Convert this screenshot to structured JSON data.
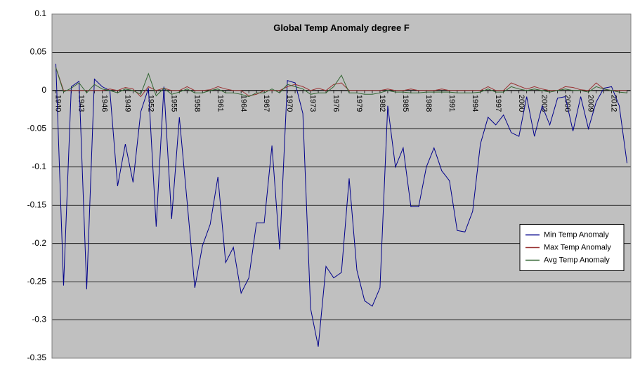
{
  "chart": {
    "type": "line",
    "title": "Global Temp Anomaly degree F",
    "title_fontsize": 13,
    "title_fontweight": "bold",
    "background_color": "#c0c0c0",
    "outer_background": "#ffffff",
    "plot_border_color": "#808080",
    "grid_color": "#000000",
    "axis_zero_color": "#000000",
    "ylabel_fontsize": 12,
    "xlabel_fontsize": 11,
    "xlabel_rotation": 90,
    "ylim": [
      -0.35,
      0.1
    ],
    "ytick_step": 0.05,
    "yticks": [
      0.1,
      0.05,
      0,
      -0.05,
      -0.1,
      -0.15,
      -0.2,
      -0.25,
      -0.3,
      -0.35
    ],
    "x_start": 1940,
    "x_end": 2014,
    "xtick_step": 3,
    "xticks": [
      1940,
      1943,
      1946,
      1949,
      1952,
      1955,
      1958,
      1961,
      1964,
      1967,
      1970,
      1973,
      1976,
      1979,
      1982,
      1985,
      1988,
      1991,
      1994,
      1997,
      2000,
      2003,
      2006,
      2009,
      2012
    ],
    "line_width": 1,
    "legend": {
      "position": "right-inside",
      "background": "#ffffff",
      "border": "#000000",
      "fontsize": 11,
      "items": [
        {
          "label": "Min Temp Anomaly",
          "color": "#00008b"
        },
        {
          "label": "Max Temp Anomaly",
          "color": "#993333"
        },
        {
          "label": "Avg Temp Anomaly",
          "color": "#336633"
        }
      ]
    },
    "series": [
      {
        "name": "Min Temp Anomaly",
        "color": "#00008b",
        "values": [
          0.035,
          -0.255,
          0.005,
          0.012,
          -0.26,
          0.015,
          0.005,
          0.0,
          -0.125,
          -0.07,
          -0.12,
          -0.028,
          0.003,
          -0.178,
          0.005,
          -0.168,
          -0.035,
          -0.145,
          -0.258,
          -0.203,
          -0.175,
          -0.113,
          -0.225,
          -0.205,
          -0.265,
          -0.245,
          -0.173,
          -0.173,
          -0.072,
          -0.208,
          0.013,
          0.01,
          -0.03,
          -0.285,
          -0.335,
          -0.23,
          -0.245,
          -0.238,
          -0.115,
          -0.235,
          -0.275,
          -0.282,
          -0.258,
          -0.02,
          -0.1,
          -0.075,
          -0.152,
          -0.152,
          -0.1,
          -0.075,
          -0.105,
          -0.118,
          -0.183,
          -0.185,
          -0.158,
          -0.07,
          -0.035,
          -0.045,
          -0.032,
          -0.055,
          -0.06,
          -0.008,
          -0.06,
          -0.02,
          -0.045,
          -0.01,
          -0.008,
          -0.053,
          -0.008,
          -0.05,
          -0.015,
          0.003,
          0.005,
          -0.02,
          -0.095
        ]
      },
      {
        "name": "Max Temp Anomaly",
        "color": "#993333",
        "values": [
          0.03,
          0.0,
          0.0,
          0.0,
          0.0,
          0.0,
          0.0,
          0.002,
          0.0,
          0.004,
          0.002,
          -0.008,
          0.005,
          0.0,
          0.003,
          0.0,
          0.0,
          0.005,
          0.0,
          0.0,
          0.001,
          0.005,
          0.002,
          0.0,
          0.0,
          -0.007,
          -0.005,
          0.0,
          0.0,
          0.0,
          0.005,
          0.008,
          0.005,
          0.0,
          0.003,
          0.0,
          0.008,
          0.01,
          0.0,
          0.0,
          0.0,
          0.0,
          0.0,
          0.002,
          0.0,
          0.0,
          0.002,
          0.0,
          0.0,
          0.0,
          0.002,
          0.0,
          0.0,
          0.0,
          0.0,
          0.0,
          0.005,
          0.0,
          0.0,
          0.01,
          0.006,
          0.002,
          0.005,
          0.002,
          0.0,
          0.0,
          0.005,
          0.004,
          0.001,
          0.0,
          0.01,
          0.002,
          0.0,
          0.0,
          0.0
        ]
      },
      {
        "name": "Avg Temp Anomaly",
        "color": "#336633",
        "values": [
          0.03,
          -0.002,
          0.003,
          0.01,
          -0.003,
          0.008,
          0.002,
          0.0,
          -0.003,
          0.002,
          0.0,
          -0.005,
          0.022,
          -0.007,
          0.003,
          -0.005,
          -0.002,
          0.002,
          -0.003,
          -0.003,
          0.0,
          0.002,
          -0.003,
          -0.003,
          -0.005,
          -0.008,
          -0.003,
          -0.003,
          0.002,
          -0.003,
          0.008,
          0.005,
          0.002,
          -0.005,
          -0.003,
          -0.003,
          0.005,
          0.02,
          -0.003,
          -0.003,
          -0.005,
          -0.005,
          -0.003,
          0.0,
          -0.002,
          -0.002,
          -0.003,
          -0.003,
          -0.002,
          -0.002,
          -0.002,
          -0.002,
          -0.003,
          -0.003,
          -0.003,
          -0.002,
          0.002,
          -0.002,
          -0.002,
          0.005,
          0.002,
          0.0,
          0.002,
          0.0,
          -0.002,
          0.0,
          0.002,
          0.0,
          0.0,
          -0.002,
          0.005,
          0.002,
          0.0,
          -0.002,
          -0.003
        ]
      }
    ]
  }
}
